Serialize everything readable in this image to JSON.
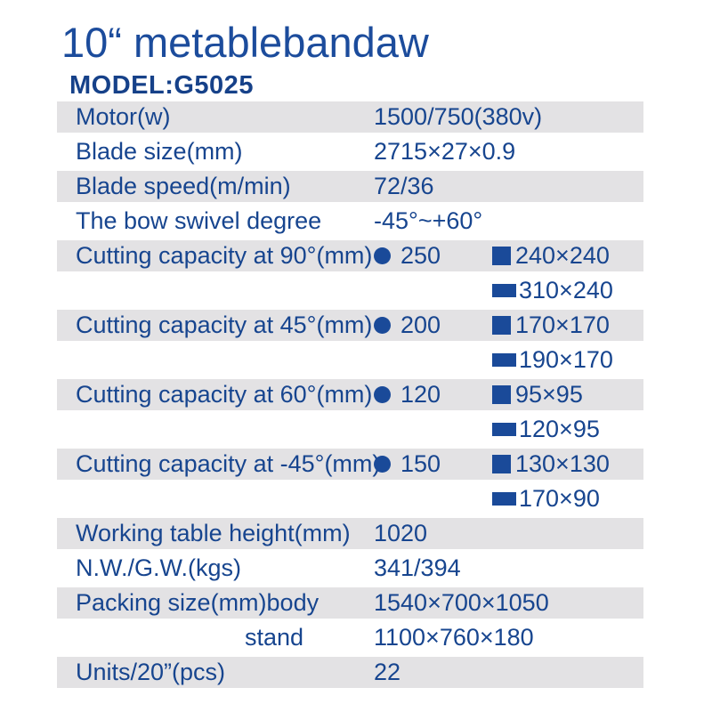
{
  "header": {
    "title": "10“ metablebandaw",
    "model": "MODEL:G5025"
  },
  "colors": {
    "accent_blue": "#1a4a99",
    "title_blue": "#1c4c9c",
    "row_gray": "#e3e2e4"
  },
  "icons": {
    "round_capacity": "filled-circle",
    "square_capacity": "filled-square",
    "rectangle_capacity": "filled-rectangle"
  },
  "table": {
    "rows": [
      {
        "label": "Motor(w)",
        "value": "1500/750(380v)"
      },
      {
        "label": "Blade size(mm)",
        "value": "2715×27×0.9"
      },
      {
        "label": "Blade speed(m/min)",
        "value": "72/36"
      },
      {
        "label": "The bow swivel degree",
        "value": "-45°~+60°"
      },
      {
        "label": "Cutting capacity at 90°(mm)",
        "round": "250",
        "square": "240×240",
        "rectangle": "310×240"
      },
      {
        "label": "Cutting capacity at 45°(mm)",
        "round": "200",
        "square": "170×170",
        "rectangle": "190×170"
      },
      {
        "label": "Cutting capacity at 60°(mm)",
        "round": "120",
        "square": "95×95",
        "rectangle": "120×95"
      },
      {
        "label": "Cutting capacity at -45°(mm)",
        "round": "150",
        "square": "130×130",
        "rectangle": "170×90"
      },
      {
        "label": "Working table height(mm)",
        "value": "1020"
      },
      {
        "label": "N.W./G.W.(kgs)",
        "value": "341/394"
      },
      {
        "label": "Packing size(mm)body",
        "value": "1540×700×1050"
      },
      {
        "label": "stand",
        "value": "1100×760×180"
      },
      {
        "label": "Units/20”(pcs)",
        "value": "22"
      }
    ]
  }
}
